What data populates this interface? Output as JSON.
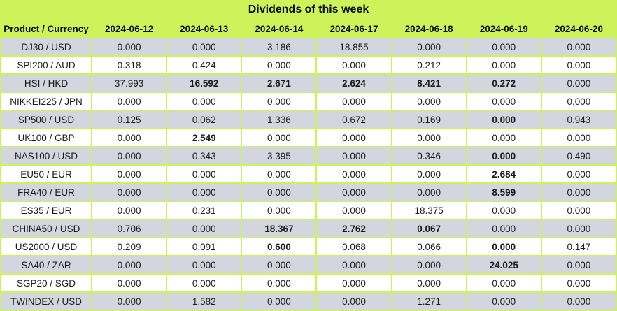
{
  "title": "Dividends of this week",
  "colors": {
    "background_green": "#CDF35B",
    "row_gray": "#D3D6DE",
    "row_white": "#FFFFFF",
    "text": "#1A1A1A"
  },
  "table": {
    "columns": [
      "Product / Currency",
      "2024-06-12",
      "2024-06-13",
      "2024-06-14",
      "2024-06-17",
      "2024-06-18",
      "2024-06-19",
      "2024-06-20"
    ],
    "rows": [
      {
        "label": "DJ30 / USD",
        "values": [
          "0.000",
          "0.000",
          "3.186",
          "18.855",
          "0.000",
          "0.000",
          "0.000"
        ],
        "bold": [
          false,
          false,
          false,
          false,
          false,
          false,
          false
        ]
      },
      {
        "label": "SPI200 / AUD",
        "values": [
          "0.318",
          "0.424",
          "0.000",
          "0.000",
          "0.212",
          "0.000",
          "0.000"
        ],
        "bold": [
          false,
          false,
          false,
          false,
          false,
          false,
          false
        ]
      },
      {
        "label": "HSI / HKD",
        "values": [
          "37.993",
          "16.592",
          "2.671",
          "2.624",
          "8.421",
          "0.272",
          "0.000"
        ],
        "bold": [
          false,
          true,
          true,
          true,
          true,
          true,
          false
        ]
      },
      {
        "label": "NIKKEI225 / JPN",
        "values": [
          "0.000",
          "0.000",
          "0.000",
          "0.000",
          "0.000",
          "0.000",
          "0.000"
        ],
        "bold": [
          false,
          false,
          false,
          false,
          false,
          false,
          false
        ]
      },
      {
        "label": "SP500 / USD",
        "values": [
          "0.125",
          "0.062",
          "1.336",
          "0.672",
          "0.169",
          "0.000",
          "0.943"
        ],
        "bold": [
          false,
          false,
          false,
          false,
          false,
          true,
          false
        ]
      },
      {
        "label": "UK100 / GBP",
        "values": [
          "0.000",
          "2.549",
          "0.000",
          "0.000",
          "0.000",
          "0.000",
          "0.000"
        ],
        "bold": [
          false,
          true,
          false,
          false,
          false,
          false,
          false
        ]
      },
      {
        "label": "NAS100 / USD",
        "values": [
          "0.000",
          "0.343",
          "3.395",
          "0.000",
          "0.346",
          "0.000",
          "0.490"
        ],
        "bold": [
          false,
          false,
          false,
          false,
          false,
          true,
          false
        ]
      },
      {
        "label": "EU50 / EUR",
        "values": [
          "0.000",
          "0.000",
          "0.000",
          "0.000",
          "0.000",
          "2.684",
          "0.000"
        ],
        "bold": [
          false,
          false,
          false,
          false,
          false,
          true,
          false
        ]
      },
      {
        "label": "FRA40 / EUR",
        "values": [
          "0.000",
          "0.000",
          "0.000",
          "0.000",
          "0.000",
          "8.599",
          "0.000"
        ],
        "bold": [
          false,
          false,
          false,
          false,
          false,
          true,
          false
        ]
      },
      {
        "label": "ES35 / EUR",
        "values": [
          "0.000",
          "0.231",
          "0.000",
          "0.000",
          "18.375",
          "0.000",
          "0.000"
        ],
        "bold": [
          false,
          false,
          false,
          false,
          false,
          false,
          false
        ]
      },
      {
        "label": "CHINA50 / USD",
        "values": [
          "0.706",
          "0.000",
          "18.367",
          "2.762",
          "0.067",
          "0.000",
          "0.000"
        ],
        "bold": [
          false,
          false,
          true,
          true,
          true,
          false,
          false
        ]
      },
      {
        "label": "US2000 / USD",
        "values": [
          "0.209",
          "0.091",
          "0.600",
          "0.068",
          "0.066",
          "0.000",
          "0.147"
        ],
        "bold": [
          false,
          false,
          true,
          false,
          false,
          true,
          false
        ]
      },
      {
        "label": "SA40 / ZAR",
        "values": [
          "0.000",
          "0.000",
          "0.000",
          "0.000",
          "0.000",
          "24.025",
          "0.000"
        ],
        "bold": [
          false,
          false,
          false,
          false,
          false,
          true,
          false
        ]
      },
      {
        "label": "SGP20 / SGD",
        "values": [
          "0.000",
          "0.000",
          "0.000",
          "0.000",
          "0.000",
          "0.000",
          "0.000"
        ],
        "bold": [
          false,
          false,
          false,
          false,
          false,
          false,
          false
        ]
      },
      {
        "label": "TWINDEX / USD",
        "values": [
          "0.000",
          "1.582",
          "0.000",
          "0.000",
          "1.271",
          "0.000",
          "0.000"
        ],
        "bold": [
          false,
          false,
          false,
          false,
          false,
          false,
          false
        ]
      }
    ]
  }
}
